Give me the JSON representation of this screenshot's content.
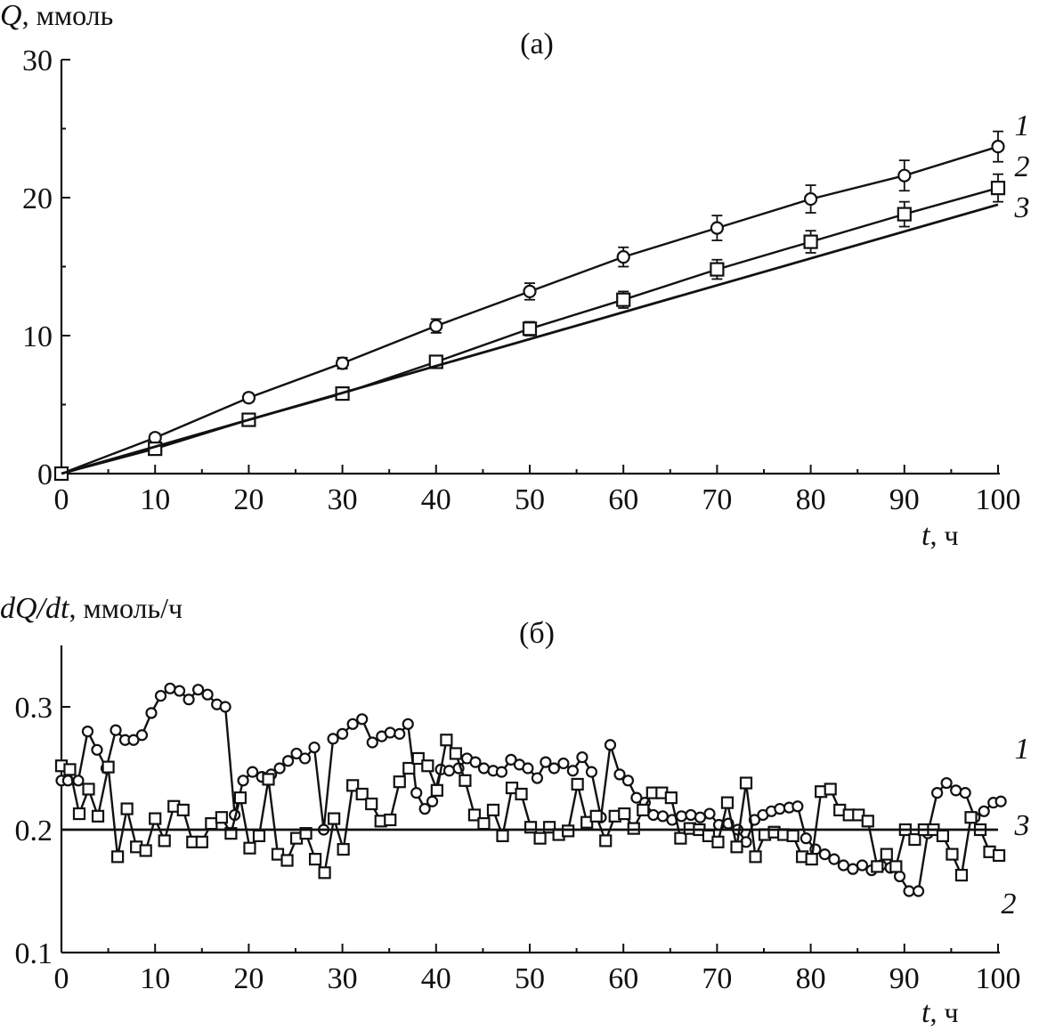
{
  "chart_data": [
    {
      "type": "line",
      "title": "(а)",
      "ylabel_symbol": "Q",
      "ylabel_unit": ", ммоль",
      "xlabel_symbol": "t",
      "xlabel_unit": ", ч",
      "xlim": [
        0,
        100
      ],
      "ylim": [
        0,
        30
      ],
      "xticks": [
        0,
        10,
        20,
        30,
        40,
        50,
        60,
        70,
        80,
        90,
        100
      ],
      "yticks": [
        0,
        10,
        20,
        30
      ],
      "series": [
        {
          "name": "1",
          "marker": "circle",
          "x": [
            0,
            10,
            20,
            30,
            40,
            50,
            60,
            70,
            80,
            90,
            100
          ],
          "y": [
            0,
            2.6,
            5.5,
            8.0,
            10.7,
            13.2,
            15.7,
            17.8,
            19.9,
            21.6,
            23.7
          ],
          "err": [
            0,
            0.3,
            0.3,
            0.4,
            0.5,
            0.6,
            0.7,
            0.9,
            1.0,
            1.1,
            1.1
          ]
        },
        {
          "name": "2",
          "marker": "square",
          "x": [
            0,
            10,
            20,
            30,
            40,
            50,
            60,
            70,
            80,
            90,
            100
          ],
          "y": [
            0,
            1.8,
            3.9,
            5.8,
            8.1,
            10.5,
            12.6,
            14.8,
            16.8,
            18.8,
            20.7
          ],
          "err": [
            0,
            0.2,
            0.3,
            0.3,
            0.4,
            0.5,
            0.6,
            0.7,
            0.8,
            0.9,
            1.0
          ]
        },
        {
          "name": "3",
          "marker": "none",
          "x": [
            0,
            100
          ],
          "y": [
            0,
            19.5
          ]
        }
      ]
    },
    {
      "type": "line",
      "title": "(б)",
      "ylabel_symbol": "dQ/dt",
      "ylabel_unit": ", ммоль/ч",
      "xlabel_symbol": "t",
      "xlabel_unit": ", ч",
      "xlim": [
        0,
        100
      ],
      "ylim": [
        0.1,
        0.35
      ],
      "xticks": [
        0,
        10,
        20,
        30,
        40,
        50,
        60,
        70,
        80,
        90,
        100
      ],
      "yticks": [
        0.1,
        0.2,
        0.3
      ],
      "ytick_labels": [
        "0.1",
        "0.2",
        "0.3"
      ],
      "series": [
        {
          "name": "1",
          "marker": "circle",
          "x": [
            0,
            0.7,
            1.8,
            2.8,
            3.8,
            4.8,
            5.8,
            6.8,
            7.7,
            8.6,
            9.6,
            10.6,
            11.6,
            12.6,
            13.6,
            14.6,
            15.6,
            16.6,
            17.5,
            18.5,
            19.4,
            20.4,
            21.4,
            22.4,
            23.3,
            24.2,
            25.1,
            26.0,
            27.0,
            28.0,
            29.0,
            30.0,
            31.1,
            32.1,
            33.2,
            34.2,
            35.1,
            36.1,
            37.0,
            37.9,
            38.8,
            39.6,
            40.5,
            41.4,
            42.4,
            43.3,
            44.2,
            45.1,
            46.1,
            47.0,
            48.0,
            48.9,
            49.8,
            50.8,
            51.7,
            52.6,
            53.6,
            54.6,
            55.6,
            56.6,
            57.6,
            58.6,
            59.6,
            60.5,
            61.4,
            62.3,
            63.2,
            64.2,
            65.2,
            66.2,
            67.2,
            68.2,
            69.2,
            70.2,
            71.2,
            72.2,
            73.1,
            74.0,
            74.9,
            75.8,
            76.7,
            77.7,
            78.6,
            79.5,
            80.5,
            81.5,
            82.5,
            83.5,
            84.5,
            85.5,
            86.5,
            87.5,
            88.5,
            89.5,
            90.5,
            91.5,
            92.5,
            93.5,
            94.5,
            95.5,
            96.5,
            97.5,
            98.5,
            99.5,
            100.3
          ],
          "y": [
            0.24,
            0.24,
            0.24,
            0.28,
            0.265,
            0.25,
            0.281,
            0.273,
            0.273,
            0.277,
            0.295,
            0.309,
            0.315,
            0.313,
            0.306,
            0.314,
            0.31,
            0.302,
            0.3,
            0.212,
            0.24,
            0.247,
            0.243,
            0.245,
            0.25,
            0.256,
            0.262,
            0.258,
            0.267,
            0.2,
            0.274,
            0.278,
            0.286,
            0.29,
            0.271,
            0.276,
            0.279,
            0.278,
            0.286,
            0.23,
            0.217,
            0.223,
            0.249,
            0.248,
            0.25,
            0.258,
            0.255,
            0.25,
            0.248,
            0.247,
            0.257,
            0.253,
            0.25,
            0.242,
            0.255,
            0.25,
            0.254,
            0.248,
            0.259,
            0.247,
            0.21,
            0.269,
            0.245,
            0.24,
            0.226,
            0.222,
            0.212,
            0.211,
            0.208,
            0.211,
            0.212,
            0.21,
            0.213,
            0.204,
            0.205,
            0.2,
            0.19,
            0.208,
            0.212,
            0.215,
            0.217,
            0.218,
            0.219,
            0.193,
            0.184,
            0.18,
            0.176,
            0.171,
            0.168,
            0.171,
            0.167,
            0.171,
            0.169,
            0.162,
            0.15,
            0.15,
            0.197,
            0.23,
            0.238,
            0.232,
            0.23,
            0.21,
            0.215,
            0.222,
            0.223
          ]
        },
        {
          "name": "2",
          "marker": "square",
          "x": [
            0,
            0.9,
            1.9,
            2.9,
            3.9,
            5.0,
            6.0,
            7.0,
            8.0,
            9.0,
            10.0,
            11.0,
            12.0,
            13.0,
            14.0,
            15.0,
            16.0,
            17.1,
            18.1,
            19.1,
            20.1,
            21.1,
            22.1,
            23.1,
            24.1,
            25.1,
            26.1,
            27.1,
            28.1,
            29.1,
            30.1,
            31.1,
            32.1,
            33.1,
            34.1,
            35.1,
            36.1,
            37.1,
            38.1,
            39.1,
            40.1,
            41.1,
            42.1,
            43.1,
            44.1,
            45.1,
            46.1,
            47.1,
            48.1,
            49.1,
            50.1,
            51.1,
            52.1,
            53.1,
            54.1,
            55.1,
            56.1,
            57.1,
            58.1,
            59.1,
            60.1,
            61.1,
            62.1,
            63.1,
            64.1,
            65.1,
            66.1,
            67.1,
            68.1,
            69.1,
            70.1,
            71.1,
            72.1,
            73.1,
            74.1,
            75.1,
            76.1,
            77.1,
            78.1,
            79.1,
            80.1,
            81.1,
            82.1,
            83.1,
            84.1,
            85.1,
            86.1,
            87.1,
            88.1,
            89.1,
            90.1,
            91.1,
            92.1,
            93.1,
            94.1,
            95.1,
            96.1,
            97.1,
            98.1,
            99.1,
            100.1
          ],
          "y": [
            0.252,
            0.249,
            0.213,
            0.233,
            0.211,
            0.251,
            0.178,
            0.217,
            0.186,
            0.183,
            0.209,
            0.191,
            0.219,
            0.216,
            0.19,
            0.19,
            0.205,
            0.21,
            0.197,
            0.226,
            0.185,
            0.195,
            0.241,
            0.18,
            0.175,
            0.193,
            0.197,
            0.176,
            0.165,
            0.209,
            0.184,
            0.236,
            0.229,
            0.221,
            0.207,
            0.208,
            0.239,
            0.25,
            0.258,
            0.252,
            0.232,
            0.273,
            0.262,
            0.24,
            0.212,
            0.205,
            0.216,
            0.195,
            0.234,
            0.229,
            0.202,
            0.193,
            0.202,
            0.196,
            0.199,
            0.237,
            0.206,
            0.211,
            0.191,
            0.211,
            0.213,
            0.201,
            0.216,
            0.23,
            0.23,
            0.226,
            0.193,
            0.201,
            0.2,
            0.195,
            0.19,
            0.222,
            0.186,
            0.238,
            0.178,
            0.196,
            0.198,
            0.196,
            0.195,
            0.178,
            0.176,
            0.231,
            0.233,
            0.216,
            0.212,
            0.212,
            0.207,
            0.17,
            0.18,
            0.17,
            0.2,
            0.192,
            0.2,
            0.2,
            0.195,
            0.18,
            0.163,
            0.21,
            0.2,
            0.182,
            0.179
          ]
        },
        {
          "name": "3",
          "marker": "none",
          "x": [
            0,
            100
          ],
          "y": [
            0.2,
            0.2
          ]
        }
      ]
    }
  ]
}
